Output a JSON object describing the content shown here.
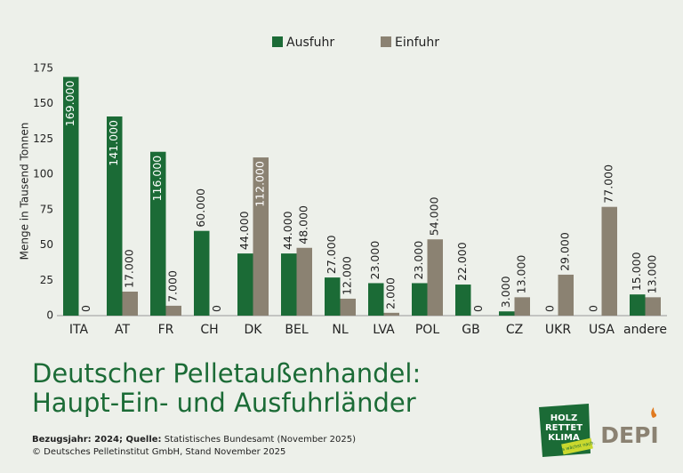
{
  "chart_data": {
    "type": "bar",
    "y_label": "Menge in Tausend Tonnen",
    "categories": [
      "ITA",
      "AT",
      "FR",
      "CH",
      "DK",
      "BEL",
      "NL",
      "LVA",
      "POL",
      "GB",
      "CZ",
      "UKR",
      "USA",
      "andere"
    ],
    "series": [
      {
        "name": "Ausfuhr",
        "color": "#1b6b36",
        "values": [
          169,
          141,
          116,
          60,
          44,
          44,
          27,
          23,
          23,
          22,
          3,
          0,
          0,
          15
        ],
        "value_labels": [
          "169.000",
          "141.000",
          "116.000",
          "60.000",
          "44.000",
          "44.000",
          "27.000",
          "23.000",
          "23.000",
          "22.000",
          "3.000",
          "0",
          "0",
          "15.000"
        ]
      },
      {
        "name": "Einfuhr",
        "color": "#8b8272",
        "values": [
          0,
          17,
          7,
          0,
          112,
          48,
          12,
          2,
          54,
          0,
          13,
          29,
          77,
          13
        ],
        "value_labels": [
          "0",
          "17.000",
          "7.000",
          "0",
          "112.000",
          "48.000",
          "12.000",
          "2.000",
          "54.000",
          "0",
          "13.000",
          "29.000",
          "77.000",
          "13.000"
        ]
      }
    ],
    "ylim": [
      0,
      175
    ],
    "yticks": [
      0,
      25,
      50,
      75,
      100,
      125,
      150,
      175
    ],
    "grid": false,
    "legend": "top"
  },
  "title": {
    "lines": [
      "Deutscher Pelletaußenhandel:",
      "Haupt-Ein- und Ausfuhrländer"
    ]
  },
  "footer": {
    "reference_label": "Bezugsjahr: 2024",
    "source_label": "Quelle:",
    "source": "Statistisches Bundesamt (November 2025)",
    "copyright": "© Deutsches Pelletinstitut GmbH, Stand November 2025"
  },
  "logos": {
    "holz": [
      "HOLZ",
      "RETTET",
      "KLIMA"
    ],
    "holz_tagline": "Es wächst nach.",
    "depi": "DEPI"
  }
}
